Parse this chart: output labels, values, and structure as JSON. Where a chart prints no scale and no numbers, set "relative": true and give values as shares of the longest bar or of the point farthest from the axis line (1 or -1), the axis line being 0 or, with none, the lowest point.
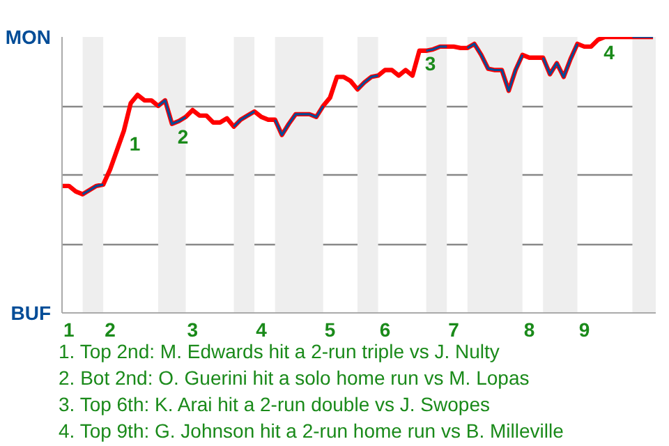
{
  "chart_data": {
    "type": "line",
    "relative": true,
    "categories": [
      null,
      "1",
      null,
      null,
      null,
      null,
      null,
      "2",
      null,
      null,
      null,
      null,
      null,
      null,
      null,
      null,
      null,
      null,
      null,
      "3",
      null,
      null,
      null,
      null,
      null,
      null,
      null,
      null,
      null,
      "4",
      null,
      null,
      null,
      null,
      null,
      null,
      null,
      null,
      null,
      "5",
      null,
      null,
      null,
      null,
      null,
      null,
      null,
      "6",
      null,
      null,
      null,
      null,
      null,
      null,
      null,
      null,
      null,
      "7",
      null,
      null,
      null,
      null,
      null,
      null,
      null,
      null,
      null,
      null,
      "8",
      null,
      null,
      null,
      null,
      null,
      null,
      null,
      "9",
      null,
      null,
      null,
      null,
      null,
      null,
      null,
      null,
      null,
      null
    ],
    "grid": "y",
    "line_style": "solid",
    "series": [
      {
        "color": "#ff0000",
        "values": [
          0.46,
          0.46,
          0.44,
          0.43,
          0.445,
          0.46,
          0.465,
          0.52,
          0.59,
          0.66,
          0.76,
          0.79,
          0.77,
          0.77,
          0.75,
          0.77,
          0.685,
          0.695,
          0.71,
          0.735,
          0.715,
          0.715,
          0.69,
          0.69,
          0.705,
          0.675,
          0.7,
          0.715,
          0.73,
          0.71,
          0.7,
          0.7,
          0.645,
          0.685,
          0.72,
          0.72,
          0.72,
          0.71,
          0.75,
          0.78,
          0.855,
          0.855,
          0.84,
          0.81,
          0.835,
          0.855,
          0.86,
          0.88,
          0.88,
          0.86,
          0.88,
          0.86,
          0.95,
          0.95,
          0.955,
          0.965,
          0.965,
          0.965,
          0.96,
          0.96,
          0.975,
          0.935,
          0.885,
          0.88,
          0.88,
          0.805,
          0.88,
          0.935,
          0.925,
          0.925,
          0.925,
          0.865,
          0.905,
          0.855,
          0.92,
          0.975,
          0.965,
          0.965,
          0.99,
          1,
          1,
          1,
          1,
          1,
          1,
          1,
          1
        ]
      },
      {
        "color": "#004c97",
        "values": [
          null,
          null,
          null,
          0.43,
          0.445,
          0.46,
          0.465,
          null,
          null,
          null,
          null,
          null,
          null,
          null,
          0.75,
          0.77,
          0.685,
          0.695,
          0.71,
          null,
          null,
          null,
          null,
          null,
          null,
          0.675,
          0.7,
          0.715,
          0.73,
          null,
          null,
          0.7,
          0.645,
          0.685,
          0.72,
          0.72,
          0.72,
          0.71,
          0.75,
          null,
          null,
          null,
          null,
          0.81,
          0.835,
          0.855,
          0.86,
          null,
          null,
          null,
          null,
          null,
          null,
          0.95,
          0.955,
          0.965,
          0.965,
          null,
          null,
          0.96,
          0.975,
          0.935,
          0.885,
          0.88,
          0.88,
          0.805,
          0.88,
          0.935,
          null,
          null,
          0.925,
          0.865,
          0.905,
          0.855,
          0.92,
          0.975,
          null,
          null,
          null,
          null,
          null,
          null,
          null,
          1,
          1,
          1,
          1
        ]
      }
    ],
    "annotations": [
      "MON",
      "BUF",
      "1",
      "2",
      "3",
      "4",
      "1. Top 2nd: M. Edwards hit a 2-run triple vs J. Nulty",
      "2. Bot 2nd: O. Guerini hit a solo home run vs M. Lopas",
      "3. Top 6th: K. Arai hit a 2-run double vs J. Swopes",
      "4. Top 9th: G. Johnson hit a 2-run home run vs B. Milleville"
    ]
  }
}
